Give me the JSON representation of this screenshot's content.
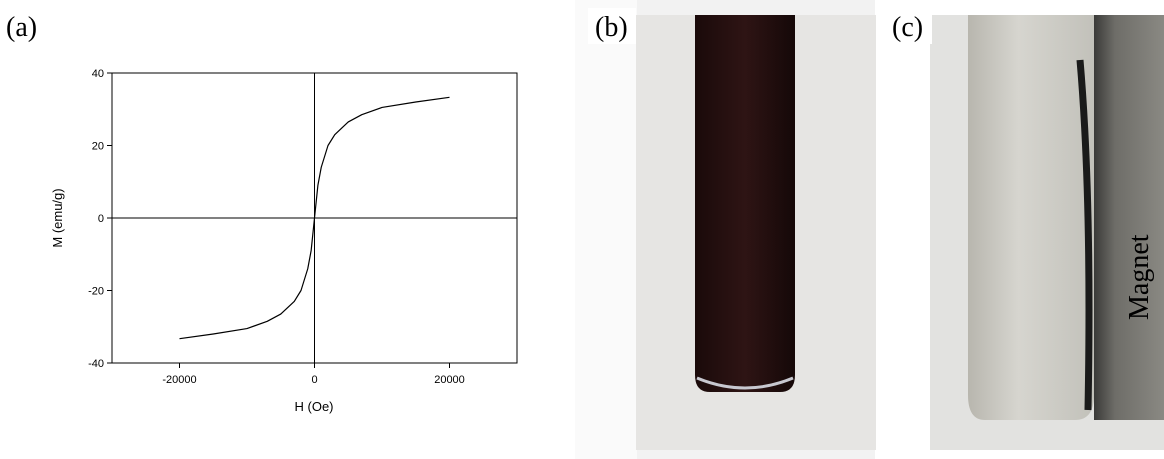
{
  "panel_labels": [
    "(a)",
    "(b)",
    "(c)"
  ],
  "photo_label": "Magnet",
  "chart_data": {
    "type": "line",
    "x_label": "H (Oe)",
    "y_label": "M (emu/g)",
    "x": [
      -20000,
      -15000,
      -10000,
      -7000,
      -5000,
      -3000,
      -2000,
      -1000,
      -500,
      0,
      500,
      1000,
      2000,
      3000,
      5000,
      7000,
      10000,
      15000,
      20000
    ],
    "values": [
      -33.3,
      -32,
      -30.5,
      -28.5,
      -26.5,
      -23,
      -20,
      -14,
      -9,
      0,
      9,
      14,
      20,
      23,
      26.5,
      28.5,
      30.5,
      32,
      33.3
    ],
    "color": "#000000",
    "xlim": [
      -30000,
      30000
    ],
    "xticks": [
      -20000,
      0,
      20000
    ],
    "ylim": [
      -40,
      40
    ],
    "yticks": [
      -40,
      -20,
      0,
      20,
      40
    ]
  }
}
